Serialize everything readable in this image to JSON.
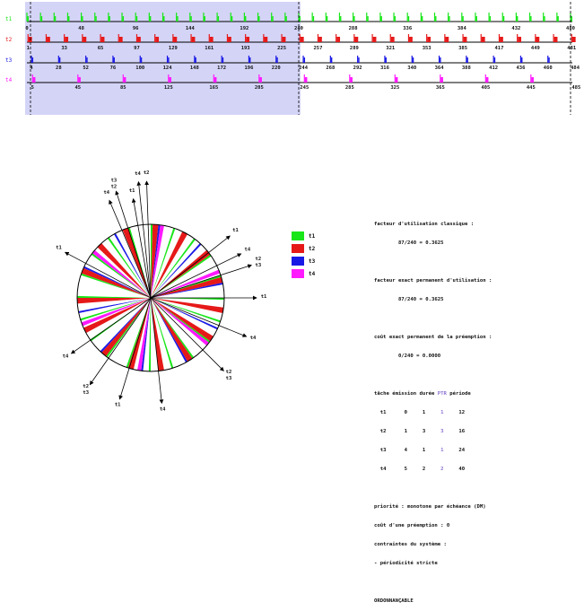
{
  "timeline": {
    "tasks": [
      {
        "label": "t1",
        "color": "#19e619",
        "period": 12,
        "wcet": 1,
        "axis_labels": [
          "0",
          "48",
          "96",
          "144",
          "192",
          "240",
          "288",
          "336",
          "384",
          "432",
          "480"
        ]
      },
      {
        "label": "t2",
        "color": "#e61919",
        "period": 16,
        "wcet": 3,
        "axis_labels": [
          "1",
          "33",
          "65",
          "97",
          "129",
          "161",
          "193",
          "225",
          "257",
          "289",
          "321",
          "353",
          "385",
          "417",
          "449",
          "481"
        ]
      },
      {
        "label": "t3",
        "color": "#1919e6",
        "period": 24,
        "wcet": 1,
        "axis_labels": [
          "4",
          "28",
          "52",
          "76",
          "100",
          "124",
          "148",
          "172",
          "196",
          "220",
          "244",
          "268",
          "292",
          "316",
          "340",
          "364",
          "388",
          "412",
          "436",
          "460",
          "484"
        ]
      },
      {
        "label": "t4",
        "color": "#ff19ff",
        "period": 40,
        "wcet": 2,
        "axis_labels": [
          "5",
          "45",
          "85",
          "125",
          "165",
          "205",
          "245",
          "285",
          "325",
          "365",
          "405",
          "445",
          "485"
        ]
      }
    ],
    "hyperperiod_marker": "240",
    "highlight_color": "#d4d4f7"
  },
  "wheel": {
    "spokes": [
      {
        "label": "t1",
        "angle": -10
      },
      {
        "label": "t3 t2",
        "angle": -18
      },
      {
        "label": "t4",
        "angle": -22
      },
      {
        "label": "t1",
        "angle": -60
      },
      {
        "label": "t4",
        "angle": -128
      },
      {
        "label": "t2 t3",
        "angle": -150
      },
      {
        "label": "t1",
        "angle": -162
      },
      {
        "label": "t4",
        "angle": 175
      },
      {
        "label": "t4",
        "angle": -8
      },
      {
        "label": "t2",
        "angle": 2
      },
      {
        "label": "t1",
        "angle": 50
      },
      {
        "label": "t4",
        "angle": 62
      },
      {
        "label": "t2 t3",
        "angle": 72
      },
      {
        "label": "t1",
        "angle": 90
      },
      {
        "label": "t4",
        "angle": 112
      },
      {
        "label": "t2 t3",
        "angle": 135
      }
    ]
  },
  "legend": [
    {
      "label": "t1",
      "color": "#19e619"
    },
    {
      "label": "t2",
      "color": "#e61919"
    },
    {
      "label": "t3",
      "color": "#1919e6"
    },
    {
      "label": "t4",
      "color": "#ff19ff"
    }
  ],
  "info": {
    "l1": "facteur d'utilisation classique :",
    "l2": "        87/240 = 0.3625",
    "l3": "facteur exact permanent d'utilisation :",
    "l4": "        87/240 = 0.3625",
    "l5": "coût exact permanent de la préemption :",
    "l6": "        0/240 = 0.0000",
    "hdr_a": "tâche émission durée ",
    "hdr_ptr": "PTR",
    "hdr_b": " période",
    "rows": [
      {
        "a": "  t1      0     1    ",
        "p": " 1",
        "b": "     12"
      },
      {
        "a": "  t2      1     3    ",
        "p": " 3",
        "b": "     16"
      },
      {
        "a": "  t3      4     1    ",
        "p": " 1",
        "b": "     24"
      },
      {
        "a": "  t4      5     2    ",
        "p": " 2",
        "b": "     40"
      }
    ],
    "l7": "priorité : monotone par échéance (DM)",
    "l8": "coût d'une préemption : 0",
    "l9": "contraintes du système :",
    "l10": "- périodicité stricte",
    "l11": "ORDONNANÇABLE"
  }
}
